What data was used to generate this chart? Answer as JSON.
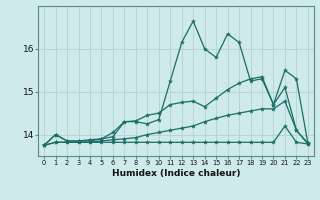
{
  "xlabel": "Humidex (Indice chaleur)",
  "ylabel": "",
  "bg_color": "#ceeaea",
  "grid_color": "#b8d4d4",
  "line_color": "#1a6e64",
  "xlim": [
    -0.5,
    23.5
  ],
  "ylim": [
    13.5,
    17.0
  ],
  "yticks": [
    14,
    15,
    16
  ],
  "xticks": [
    0,
    1,
    2,
    3,
    4,
    5,
    6,
    7,
    8,
    9,
    10,
    11,
    12,
    13,
    14,
    15,
    16,
    17,
    18,
    19,
    20,
    21,
    22,
    23
  ],
  "series": [
    {
      "x": [
        0,
        1,
        2,
        3,
        4,
        5,
        6,
        7,
        8,
        9,
        10,
        11,
        12,
        13,
        14,
        15,
        16,
        17,
        18,
        19,
        20,
        21,
        22,
        23
      ],
      "y": [
        13.75,
        14.0,
        13.85,
        13.85,
        13.85,
        13.9,
        13.95,
        14.3,
        14.3,
        14.25,
        14.35,
        15.25,
        16.15,
        16.65,
        16.0,
        15.8,
        16.35,
        16.15,
        15.25,
        15.3,
        14.7,
        15.5,
        15.3,
        13.8
      ]
    },
    {
      "x": [
        0,
        1,
        2,
        3,
        4,
        5,
        6,
        7,
        8,
        9,
        10,
        11,
        12,
        13,
        14,
        15,
        16,
        17,
        18,
        19,
        20,
        21,
        22,
        23
      ],
      "y": [
        13.75,
        14.0,
        13.85,
        13.85,
        13.88,
        13.9,
        14.05,
        14.3,
        14.32,
        14.45,
        14.5,
        14.7,
        14.75,
        14.78,
        14.65,
        14.85,
        15.05,
        15.2,
        15.3,
        15.35,
        14.7,
        15.1,
        14.1,
        13.8
      ]
    },
    {
      "x": [
        0,
        1,
        2,
        3,
        4,
        5,
        6,
        7,
        8,
        9,
        10,
        11,
        12,
        13,
        14,
        15,
        16,
        17,
        18,
        19,
        20,
        21,
        22,
        23
      ],
      "y": [
        13.75,
        13.82,
        13.82,
        13.82,
        13.82,
        13.82,
        13.82,
        13.82,
        13.82,
        13.82,
        13.82,
        13.82,
        13.82,
        13.82,
        13.82,
        13.82,
        13.82,
        13.82,
        13.82,
        13.82,
        13.82,
        14.2,
        13.82,
        13.78
      ]
    },
    {
      "x": [
        0,
        1,
        2,
        3,
        4,
        5,
        6,
        7,
        8,
        9,
        10,
        11,
        12,
        13,
        14,
        15,
        16,
        17,
        18,
        19,
        20,
        21,
        22,
        23
      ],
      "y": [
        13.75,
        13.82,
        13.82,
        13.82,
        13.82,
        13.85,
        13.88,
        13.9,
        13.93,
        14.0,
        14.05,
        14.1,
        14.15,
        14.2,
        14.3,
        14.38,
        14.45,
        14.5,
        14.55,
        14.6,
        14.6,
        14.78,
        14.1,
        13.78
      ]
    }
  ]
}
